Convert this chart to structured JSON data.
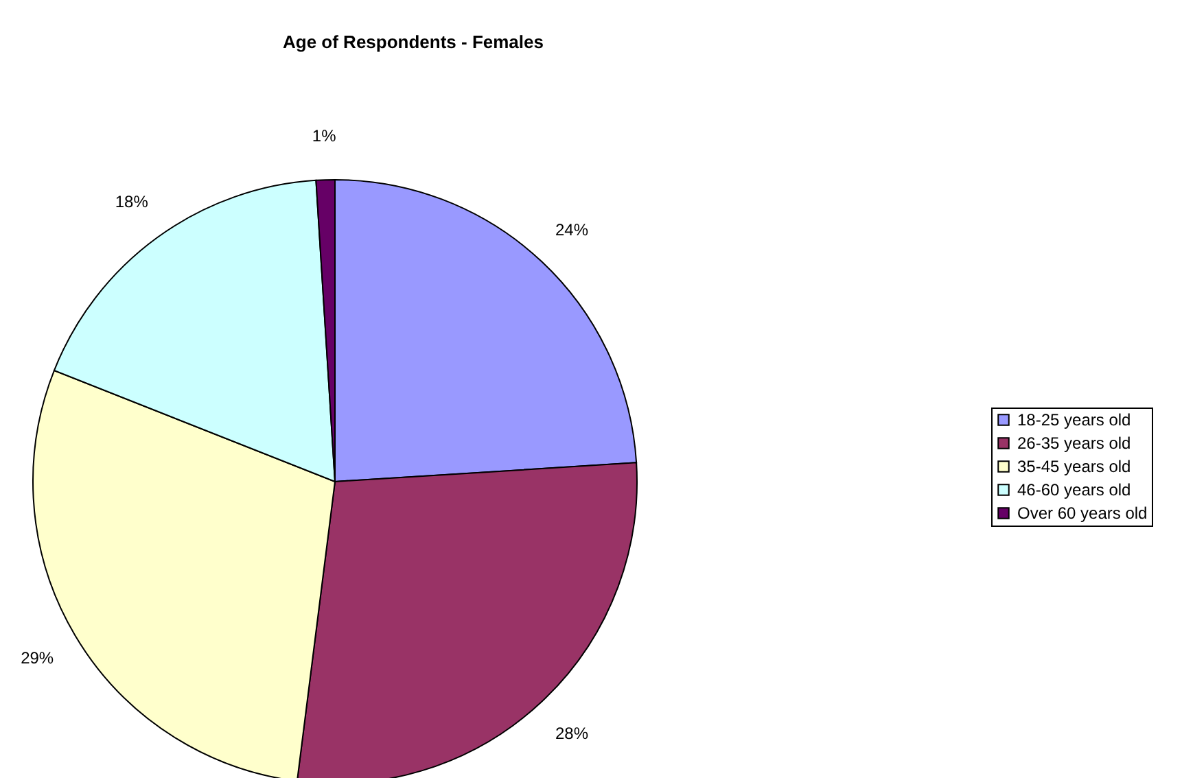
{
  "chart_data": {
    "type": "pie",
    "title": "Age of Respondents - Females",
    "categories": [
      "18-25 years old",
      "26-35 years old",
      "35-45 years old",
      "46-60 years old",
      "Over 60 years old"
    ],
    "values": [
      24,
      28,
      29,
      18,
      1
    ],
    "colors": [
      "#9999ff",
      "#993366",
      "#ffffcc",
      "#ccffff",
      "#660066"
    ],
    "value_labels": [
      "24%",
      "28%",
      "29%",
      "18%",
      "1%"
    ],
    "legend": "right"
  }
}
